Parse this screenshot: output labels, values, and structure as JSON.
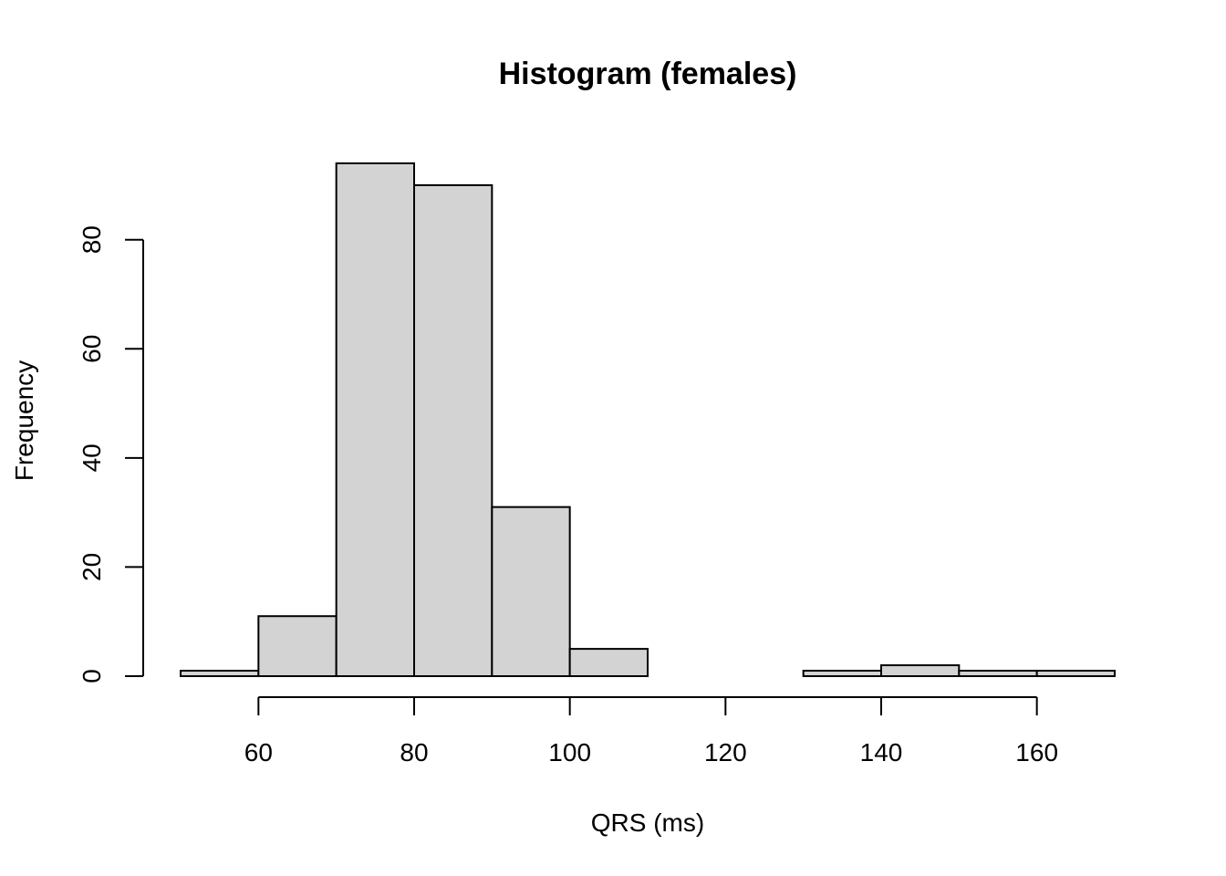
{
  "chart_data": {
    "type": "bar",
    "title": "Histogram (females)",
    "xlabel": "QRS (ms)",
    "ylabel": "Frequency",
    "bins": [
      {
        "start": 50,
        "end": 60,
        "count": 1
      },
      {
        "start": 60,
        "end": 70,
        "count": 11
      },
      {
        "start": 70,
        "end": 80,
        "count": 94
      },
      {
        "start": 80,
        "end": 90,
        "count": 90
      },
      {
        "start": 90,
        "end": 100,
        "count": 31
      },
      {
        "start": 100,
        "end": 110,
        "count": 5
      },
      {
        "start": 110,
        "end": 120,
        "count": 0
      },
      {
        "start": 120,
        "end": 130,
        "count": 0
      },
      {
        "start": 130,
        "end": 140,
        "count": 1
      },
      {
        "start": 140,
        "end": 150,
        "count": 2
      },
      {
        "start": 150,
        "end": 160,
        "count": 1
      },
      {
        "start": 160,
        "end": 170,
        "count": 1
      }
    ],
    "x_ticks": [
      60,
      80,
      100,
      120,
      140,
      160
    ],
    "y_ticks": [
      0,
      20,
      40,
      60,
      80
    ],
    "xlim": [
      50,
      170
    ],
    "ylim": [
      0,
      94
    ],
    "bar_color": "#d3d3d3",
    "grid": false,
    "legend": false
  }
}
